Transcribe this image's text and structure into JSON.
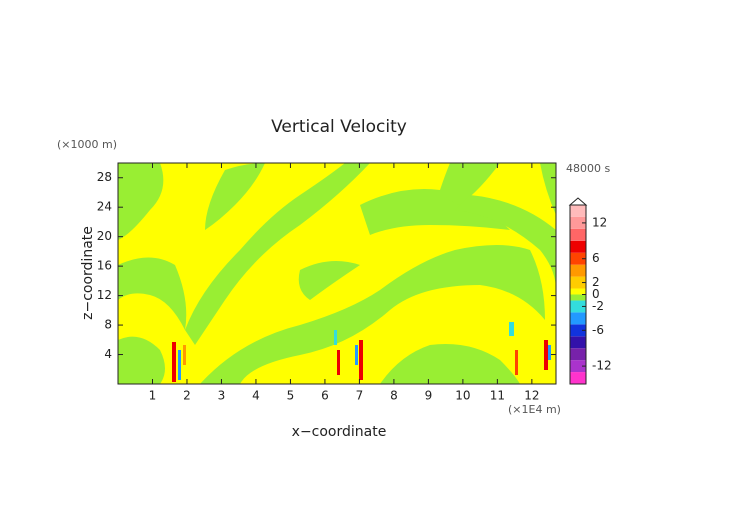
{
  "chart_data": {
    "type": "contour",
    "title": "Vertical Velocity",
    "x_label": "x−coordinate",
    "y_label": "z−coordinate",
    "x_unit": "(×1E4 m)",
    "y_unit": "(×1000 m)",
    "time_label": "48000 s",
    "xlim": [
      0,
      12.7
    ],
    "xticks": [
      1,
      2,
      3,
      4,
      5,
      6,
      7,
      8,
      9,
      10,
      11,
      12
    ],
    "ylim": [
      0,
      30
    ],
    "yticks": [
      4,
      8,
      12,
      16,
      20,
      24,
      28
    ],
    "colorbar": {
      "lim": [
        -15,
        15
      ],
      "ticks": [
        -12,
        -6,
        -2,
        0,
        2,
        6,
        12
      ],
      "levels": [
        -15,
        -13,
        -11,
        -9,
        -7,
        -5,
        -3,
        -1,
        0,
        1,
        3,
        5,
        7,
        9,
        11,
        13,
        15
      ],
      "colors": [
        "#ff33cc",
        "#aa33cc",
        "#7722aa",
        "#3311aa",
        "#1133dd",
        "#2299ff",
        "#33dddd",
        "#99ee33",
        "#ffff00",
        "#ffcc00",
        "#ff9900",
        "#ff4400",
        "#ee0000",
        "#ff6666",
        "#ff9999",
        "#ffbbbb"
      ]
    }
  }
}
